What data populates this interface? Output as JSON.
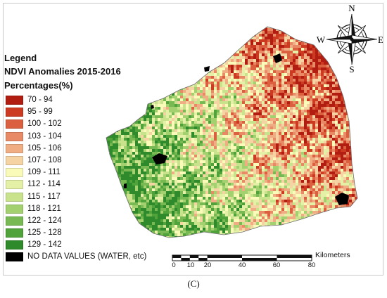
{
  "legend": {
    "title": "Legend",
    "subtitle": "NDVI Anomalies 2015-2016",
    "units": "Percentages(%)",
    "classes": [
      {
        "label": "70 - 94",
        "color": "#b21d12"
      },
      {
        "label": "95 - 99",
        "color": "#cc3a21"
      },
      {
        "label": "100 - 102",
        "color": "#db6040"
      },
      {
        "label": "103 - 104",
        "color": "#e88a66"
      },
      {
        "label": "105 - 106",
        "color": "#f0ad84"
      },
      {
        "label": "107 - 108",
        "color": "#f5d3a3"
      },
      {
        "label": "109 - 111",
        "color": "#fafab9"
      },
      {
        "label": "112 - 114",
        "color": "#e3f0a6"
      },
      {
        "label": "115 - 117",
        "color": "#c8e38c"
      },
      {
        "label": "118 - 121",
        "color": "#a4d16f"
      },
      {
        "label": "122 - 124",
        "color": "#78b954"
      },
      {
        "label": "125 - 128",
        "color": "#4fa33a"
      },
      {
        "label": "129 - 142",
        "color": "#2e8a2a"
      },
      {
        "label": "NO DATA VALUES (WATER, etc)",
        "color": "#000000"
      }
    ]
  },
  "scale_bar": {
    "unit": "Kilometers",
    "ticks": [
      "0",
      "10",
      "20",
      "40",
      "60",
      "80"
    ]
  },
  "compass": {
    "north": "N",
    "south": "S",
    "east": "E",
    "west": "W"
  },
  "caption": "(C)",
  "colors": {
    "background": "#ffffff",
    "no_data": "#000000"
  }
}
